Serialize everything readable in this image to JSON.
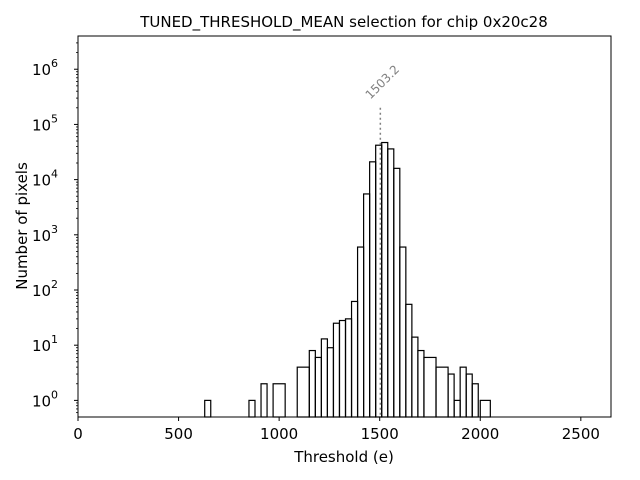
{
  "chart_data": {
    "type": "histogram",
    "title": "TUNED_THRESHOLD_MEAN selection for chip 0x20c28",
    "xlabel": "Threshold (e)",
    "ylabel": "Number of pixels",
    "xlim": [
      0,
      2650
    ],
    "ylim": [
      0.5,
      4000000
    ],
    "yscale": "log",
    "grid": false,
    "xticks": [
      0,
      500,
      1000,
      1500,
      2000,
      2500
    ],
    "xtick_labels": [
      "0",
      "500",
      "1000",
      "1500",
      "2000",
      "2500"
    ],
    "yticks": [
      {
        "value": 1,
        "base": "10",
        "exp": "0"
      },
      {
        "value": 10,
        "base": "10",
        "exp": "1"
      },
      {
        "value": 100,
        "base": "10",
        "exp": "2"
      },
      {
        "value": 1000,
        "base": "10",
        "exp": "3"
      },
      {
        "value": 10000,
        "base": "10",
        "exp": "4"
      },
      {
        "value": 100000,
        "base": "10",
        "exp": "5"
      },
      {
        "value": 1000000,
        "base": "10",
        "exp": "6"
      }
    ],
    "series": [
      {
        "bins": [
          [
            630,
            660,
            1
          ],
          [
            850,
            880,
            1
          ],
          [
            910,
            940,
            2
          ],
          [
            970,
            1030,
            2
          ],
          [
            1090,
            1150,
            4
          ],
          [
            1150,
            1180,
            8
          ],
          [
            1180,
            1210,
            6
          ],
          [
            1210,
            1240,
            13
          ],
          [
            1240,
            1270,
            9
          ],
          [
            1270,
            1300,
            25
          ],
          [
            1300,
            1330,
            28
          ],
          [
            1330,
            1360,
            30
          ],
          [
            1360,
            1390,
            62
          ],
          [
            1390,
            1420,
            600
          ],
          [
            1420,
            1450,
            5500
          ],
          [
            1450,
            1480,
            21000
          ],
          [
            1480,
            1510,
            42000
          ],
          [
            1510,
            1540,
            47000
          ],
          [
            1540,
            1570,
            36000
          ],
          [
            1570,
            1600,
            16000
          ],
          [
            1600,
            1630,
            600
          ],
          [
            1630,
            1660,
            55
          ],
          [
            1660,
            1690,
            14
          ],
          [
            1690,
            1720,
            8
          ],
          [
            1720,
            1780,
            6
          ],
          [
            1780,
            1840,
            4
          ],
          [
            1840,
            1870,
            3
          ],
          [
            1870,
            1900,
            1
          ],
          [
            1900,
            1930,
            4
          ],
          [
            1930,
            1960,
            3
          ],
          [
            1960,
            1990,
            2
          ],
          [
            2000,
            2050,
            1
          ]
        ]
      }
    ],
    "vline": {
      "x": 1503.2,
      "label": "1503.2",
      "y_top": 200000
    },
    "colors": {
      "bars": "#000000",
      "vline": "#808080",
      "annot": "#808080"
    }
  }
}
